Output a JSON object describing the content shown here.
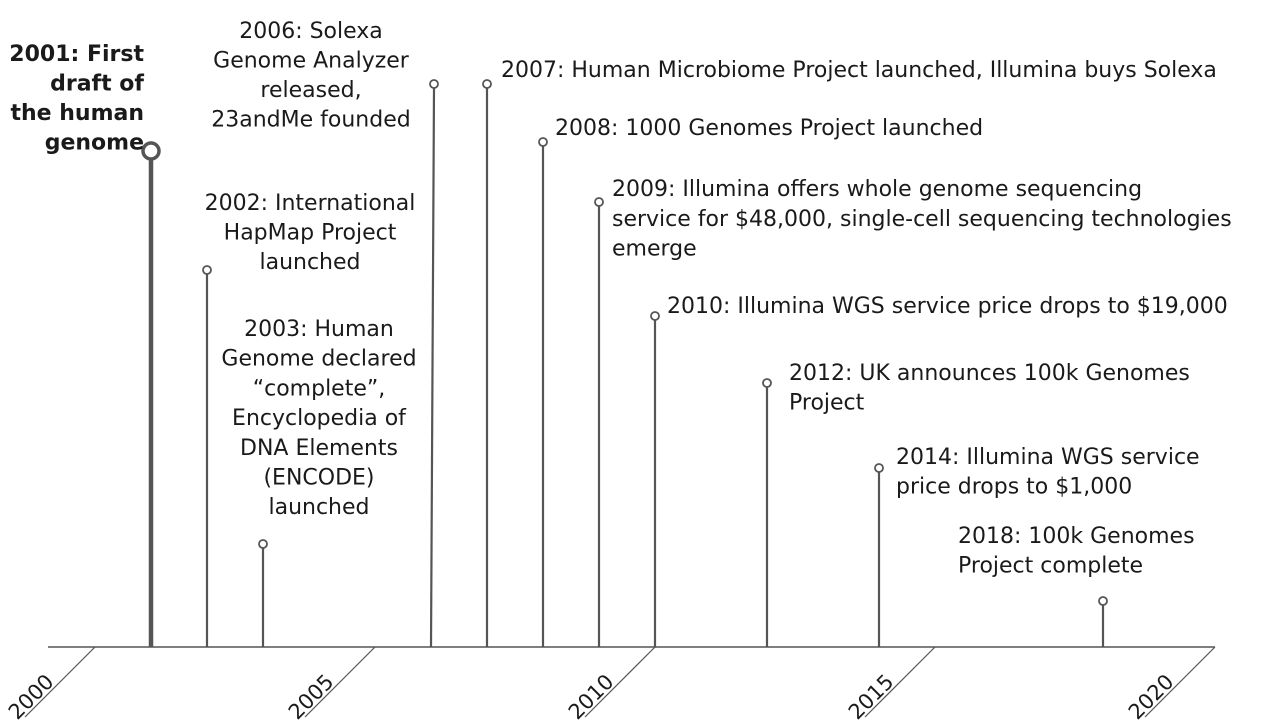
{
  "chart_data": {
    "type": "timeline",
    "title": "",
    "axis": {
      "xlim": [
        2000,
        2020
      ],
      "ticks": [
        "2000",
        "2005",
        "2010",
        "2015",
        "2020"
      ]
    },
    "events": [
      {
        "year": 2001,
        "label": "2001: First draft of the human genome",
        "lines": [
          "2001: First",
          "draft of",
          "the human",
          "genome"
        ],
        "emphasis": true
      },
      {
        "year": 2002,
        "label": "2002: International HapMap Project launched",
        "lines": [
          "2002: International",
          "HapMap Project",
          "launched"
        ]
      },
      {
        "year": 2003,
        "label": "2003: Human Genome declared “complete”, Encyclopedia of DNA Elements (ENCODE) launched",
        "lines": [
          "2003: Human",
          "Genome declared",
          "“complete”,",
          "Encyclopedia of",
          "DNA Elements",
          "(ENCODE)",
          "launched"
        ]
      },
      {
        "year": 2006,
        "label": "2006: Solexa Genome Analyzer released, 23andMe founded",
        "lines": [
          "2006: Solexa",
          "Genome Analyzer",
          "released,",
          "23andMe founded"
        ]
      },
      {
        "year": 2007,
        "label": "2007: Human Microbiome Project launched, Illumina buys Solexa",
        "lines": [
          "2007: Human Microbiome Project launched, Illumina buys Solexa"
        ]
      },
      {
        "year": 2008,
        "label": "2008: 1000 Genomes Project launched",
        "lines": [
          "2008: 1000 Genomes Project launched"
        ]
      },
      {
        "year": 2009,
        "label": "2009: Illumina offers whole genome sequencing service for $48,000, single-cell sequencing technologies emerge",
        "lines": [
          "2009: Illumina offers whole genome sequencing",
          "service for $48,000, single-cell sequencing technologies",
          "emerge"
        ]
      },
      {
        "year": 2010,
        "label": "2010: Illumina WGS service price drops to $19,000",
        "lines": [
          "2010: Illumina WGS service price drops to $19,000"
        ]
      },
      {
        "year": 2012,
        "label": "2012: UK announces 100k Genomes Project",
        "lines": [
          "2012: UK announces 100k Genomes",
          "Project"
        ]
      },
      {
        "year": 2014,
        "label": "2014: Illumina WGS service price drops to $1,000",
        "lines": [
          "2014: Illumina WGS service",
          "price drops to $1,000"
        ]
      },
      {
        "year": 2018,
        "label": "2018: 100k Genomes Project complete",
        "lines": [
          "2018: 100k Genomes",
          "Project complete"
        ]
      }
    ],
    "colors": {
      "line": "#555555",
      "text": "#1a1a1a",
      "marker_fill": "#ffffff"
    }
  }
}
